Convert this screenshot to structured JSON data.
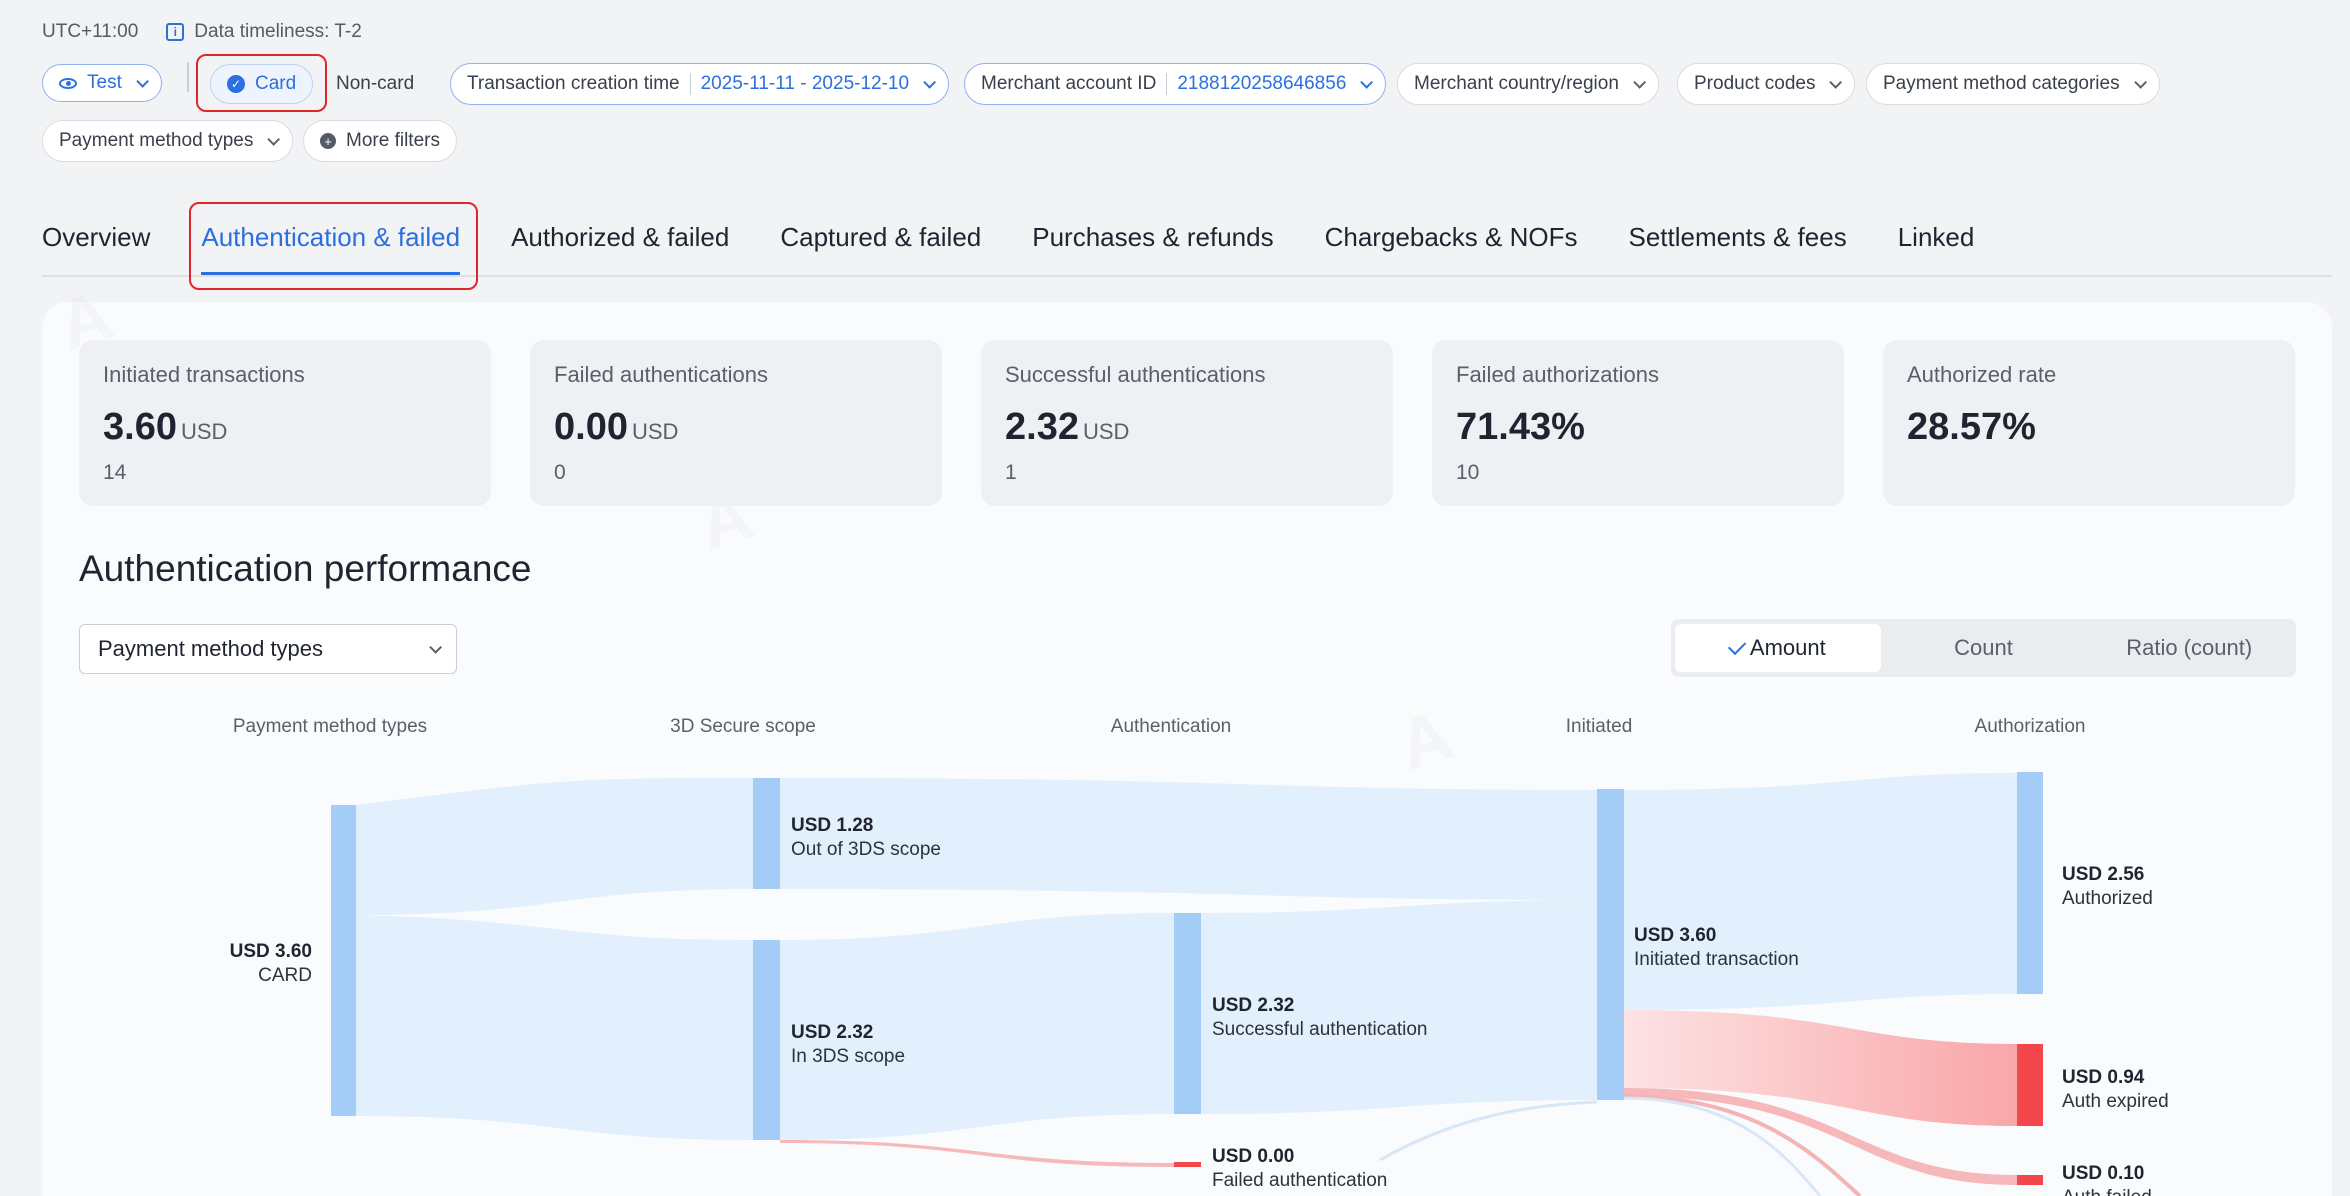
{
  "topbar": {
    "timezone": "UTC+11:00",
    "timeliness": "Data timeliness: T-2"
  },
  "filters": {
    "env": "Test",
    "card": "Card",
    "noncard": "Non-card",
    "creation_label": "Transaction creation time",
    "creation_value": "2025-11-11 - 2025-12-10",
    "merchant_label": "Merchant account ID",
    "merchant_value": "2188120258646856",
    "country": "Merchant country/region",
    "product": "Product codes",
    "pm_categories": "Payment method categories",
    "pm_types": "Payment method types",
    "more": "More filters"
  },
  "tabs": [
    "Overview",
    "Authentication & failed",
    "Authorized & failed",
    "Captured & failed",
    "Purchases & refunds",
    "Chargebacks & NOFs",
    "Settlements & fees",
    "Linked"
  ],
  "cards": [
    {
      "label": "Initiated transactions",
      "value": "3.60",
      "unit": "USD",
      "sub": "14"
    },
    {
      "label": "Failed authentications",
      "value": "0.00",
      "unit": "USD",
      "sub": "0"
    },
    {
      "label": "Successful authentications",
      "value": "2.32",
      "unit": "USD",
      "sub": "1"
    },
    {
      "label": "Failed authorizations",
      "value": "71.43%",
      "unit": "",
      "sub": "10"
    },
    {
      "label": "Authorized rate",
      "value": "28.57%",
      "unit": "",
      "sub": ""
    }
  ],
  "section": {
    "title": "Authentication performance",
    "dimension": "Payment method types",
    "view_options": [
      "Amount",
      "Count",
      "Ratio (count)"
    ]
  },
  "chart_data": {
    "type": "sankey",
    "columns": [
      "Payment method types",
      "3D Secure scope",
      "Authentication",
      "Initiated",
      "Authorization"
    ],
    "nodes": [
      {
        "id": "card",
        "column": 0,
        "amount": "USD 3.60",
        "label": "CARD"
      },
      {
        "id": "out3ds",
        "column": 1,
        "amount": "USD 1.28",
        "label": "Out of 3DS scope"
      },
      {
        "id": "in3ds",
        "column": 1,
        "amount": "USD 2.32",
        "label": "In 3DS scope"
      },
      {
        "id": "succ",
        "column": 2,
        "amount": "USD 2.32",
        "label": "Successful authentication"
      },
      {
        "id": "fail",
        "column": 2,
        "amount": "USD 0.00",
        "label": "Failed authentication"
      },
      {
        "id": "init",
        "column": 3,
        "amount": "USD 3.60",
        "label": "Initiated transaction"
      },
      {
        "id": "authz",
        "column": 4,
        "amount": "USD 2.56",
        "label": "Authorized"
      },
      {
        "id": "expired",
        "column": 4,
        "amount": "USD 0.94",
        "label": "Auth expired"
      },
      {
        "id": "authfail",
        "column": 4,
        "amount": "USD 0.10",
        "label": "Auth failed"
      }
    ],
    "links": [
      {
        "source": "card",
        "target": "out3ds",
        "value": 1.28
      },
      {
        "source": "card",
        "target": "in3ds",
        "value": 2.32
      },
      {
        "source": "out3ds",
        "target": "init",
        "value": 1.28
      },
      {
        "source": "in3ds",
        "target": "succ",
        "value": 2.32
      },
      {
        "source": "in3ds",
        "target": "fail",
        "value": 0.0
      },
      {
        "source": "succ",
        "target": "init",
        "value": 2.32
      },
      {
        "source": "init",
        "target": "authz",
        "value": 2.56
      },
      {
        "source": "init",
        "target": "expired",
        "value": 0.94
      },
      {
        "source": "init",
        "target": "authfail",
        "value": 0.1
      }
    ]
  }
}
